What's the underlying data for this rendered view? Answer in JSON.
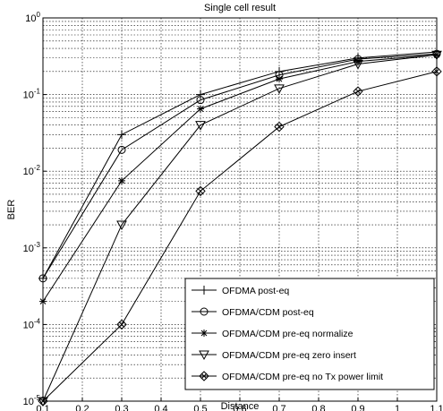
{
  "chart_data": {
    "type": "line",
    "title": "Single cell result",
    "xlabel": "Distance",
    "ylabel": "BER",
    "xlim": [
      0.1,
      1.1
    ],
    "ylim": [
      1e-05,
      1
    ],
    "yscale": "log",
    "grid": true,
    "legend_position": "bottom-right",
    "x_ticks": [
      "0.1",
      "0.2",
      "0.3",
      "0.4",
      "0.5",
      "0.6",
      "0.7",
      "0.8",
      "0.9",
      "1",
      "1.1"
    ],
    "y_ticks": [
      {
        "base": "10",
        "exp": "-5"
      },
      {
        "base": "10",
        "exp": "-4"
      },
      {
        "base": "10",
        "exp": "-3"
      },
      {
        "base": "10",
        "exp": "-2"
      },
      {
        "base": "10",
        "exp": "-1"
      },
      {
        "base": "10",
        "exp": "0"
      }
    ],
    "x": [
      0.1,
      0.3,
      0.5,
      0.7,
      0.9,
      1.1
    ],
    "series": [
      {
        "name": "OFDMA post-eq",
        "marker": "plus",
        "values": [
          0.0004,
          0.03,
          0.1,
          0.2,
          0.3,
          0.36
        ]
      },
      {
        "name": "OFDMA/CDM post-eq",
        "marker": "circle",
        "values": [
          0.0004,
          0.019,
          0.085,
          0.18,
          0.29,
          0.34
        ]
      },
      {
        "name": "OFDMA/CDM pre-eq normalize",
        "marker": "star",
        "values": [
          0.0002,
          0.0075,
          0.065,
          0.16,
          0.27,
          0.33
        ]
      },
      {
        "name": "OFDMA/CDM pre-eq zero insert",
        "marker": "triangle-down",
        "values": [
          1e-05,
          0.002,
          0.04,
          0.12,
          0.25,
          0.33
        ]
      },
      {
        "name": "OFDMA/CDM pre-eq no Tx power limit",
        "marker": "diamond",
        "values": [
          1e-05,
          0.0001,
          0.0055,
          0.038,
          0.11,
          0.2
        ]
      }
    ]
  }
}
